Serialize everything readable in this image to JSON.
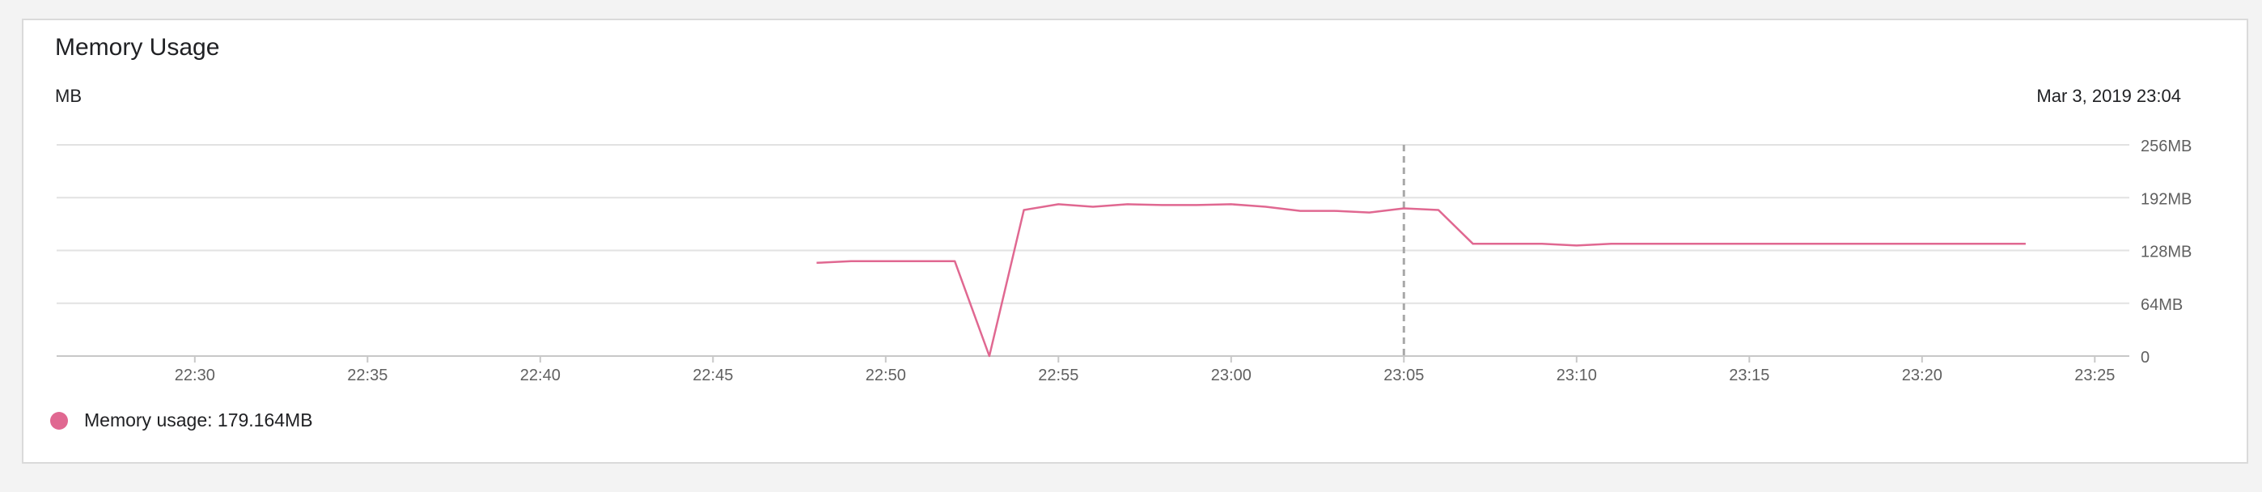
{
  "panel": {
    "title": "Memory Usage",
    "unit_label": "MB",
    "hover_timestamp": "Mar 3, 2019 23:04"
  },
  "legend": {
    "label": "Memory usage: 179.164MB"
  },
  "colors": {
    "series": "#e06891",
    "grid": "#e2e2e2",
    "axis": "#c8c8c8",
    "tick_text": "#606060",
    "cursor": "#a8a8a8"
  },
  "chart_data": {
    "type": "line",
    "title": "Memory Usage",
    "ylabel": "MB",
    "ylim": [
      0,
      256
    ],
    "xlim": [
      "22:26",
      "23:26"
    ],
    "yticks": [
      0,
      64,
      128,
      192,
      256
    ],
    "ytick_labels": [
      "0",
      "64MB",
      "128MB",
      "192MB",
      "256MB"
    ],
    "xticks": [
      "22:30",
      "22:35",
      "22:40",
      "22:45",
      "22:50",
      "22:55",
      "23:00",
      "23:05",
      "23:10",
      "23:15",
      "23:20",
      "23:25"
    ],
    "grid": true,
    "legend_position": "bottom-left",
    "hover_x": "23:05",
    "series": [
      {
        "name": "Memory usage",
        "x": [
          "22:48",
          "22:49",
          "22:50",
          "22:51",
          "22:52",
          "22:53",
          "22:54",
          "22:55",
          "22:56",
          "22:57",
          "22:58",
          "22:59",
          "23:00",
          "23:01",
          "23:02",
          "23:03",
          "23:04",
          "23:05",
          "23:06",
          "23:07",
          "23:08",
          "23:09",
          "23:10",
          "23:11",
          "23:12",
          "23:13",
          "23:14",
          "23:15",
          "23:16",
          "23:17",
          "23:18",
          "23:19",
          "23:20",
          "23:21",
          "23:22",
          "23:23"
        ],
        "y": [
          113,
          115,
          115,
          115,
          115,
          0,
          177,
          184,
          181,
          184,
          183,
          183,
          184,
          181,
          176,
          176,
          174,
          179,
          177,
          136,
          136,
          136,
          134,
          136,
          136,
          136,
          136,
          136,
          136,
          136,
          136,
          136,
          136,
          136,
          136,
          136
        ]
      }
    ]
  }
}
